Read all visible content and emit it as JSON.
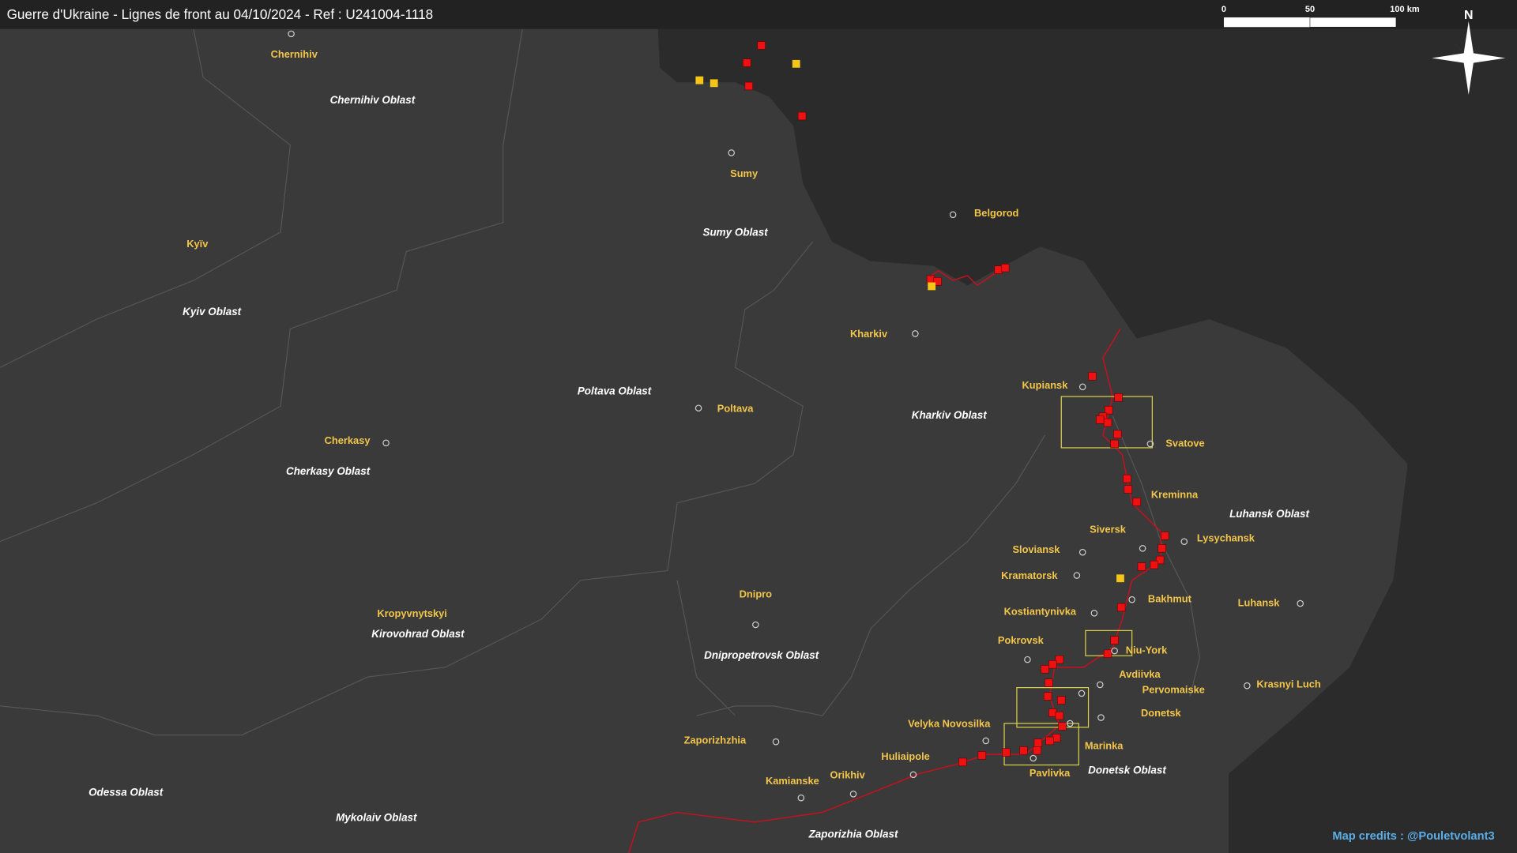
{
  "header": {
    "title": "Guerre d'Ukraine - Lignes de front au 04/10/2024 - Ref : U241004-1118"
  },
  "scale": {
    "labels": [
      "0",
      "50",
      "100 km"
    ]
  },
  "compass": {
    "label": "N"
  },
  "oblasts": [
    "Chernihiv Oblast",
    "Sumy Oblast",
    "Kyiv Oblast",
    "Poltava Oblast",
    "Kharkiv Oblast",
    "Cherkasy Oblast",
    "Luhansk Oblast",
    "Kirovohrad Oblast",
    "Dnipropetrovsk Oblast",
    "Donetsk Oblast",
    "Odessa Oblast",
    "Mykolaiv Oblast",
    "Zaporizhia Oblast"
  ],
  "cities": [
    "Chernihiv",
    "Sumy",
    "Belgorod",
    "Kyïv",
    "Kharkiv",
    "Kupiansk",
    "Poltava",
    "Svatove",
    "Cherkasy",
    "Kreminna",
    "Siversk",
    "Lysychansk",
    "Sloviansk",
    "Kramatorsk",
    "Bakhmut",
    "Dnipro",
    "Kropyvnytskyi",
    "Kostiantynivka",
    "Luhansk",
    "Pokrovsk",
    "Niu-York",
    "Avdiivka",
    "Pervomaiske",
    "Krasnyi Luch",
    "Donetsk",
    "Velyka Novosilka",
    "Zaporizhzhia",
    "Marinka",
    "Huliaipole",
    "Orikhiv",
    "Kamianske",
    "Pavlivka"
  ],
  "credits": "Map credits : @Pouletvolant3"
}
